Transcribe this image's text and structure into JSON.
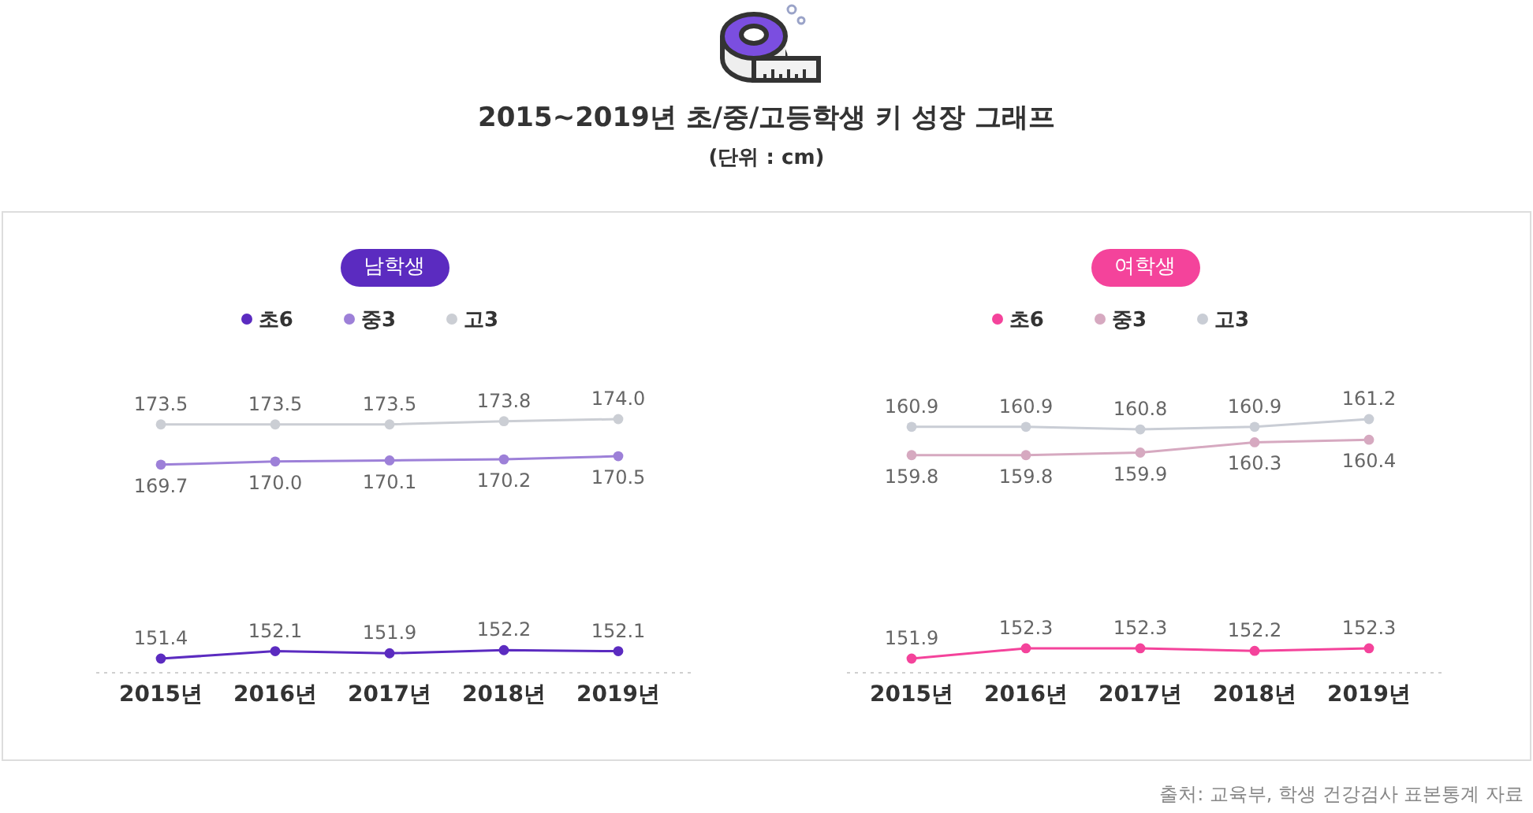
{
  "chart_data": [
    {
      "type": "other",
      "title": "2015~2019년 초/중/고등학생 키 성장 그래프",
      "subtitle": "(단위 : cm)"
    },
    {
      "type": "line",
      "legend_title": "남학생",
      "categories": [
        "2015년",
        "2016년",
        "2017년",
        "2018년",
        "2019년"
      ],
      "series": [
        {
          "name": "초6",
          "color": "#5b2bc0",
          "values": [
            151.4,
            152.1,
            151.9,
            152.2,
            152.1
          ],
          "value_labels": [
            "151.4",
            "152.1",
            "151.9",
            "152.2",
            "152.1"
          ]
        },
        {
          "name": "중3",
          "color": "#9d80d8",
          "values": [
            169.7,
            170.0,
            170.1,
            170.2,
            170.5
          ],
          "value_labels": [
            "169.7",
            "170.0",
            "170.1",
            "170.2",
            "170.5"
          ]
        },
        {
          "name": "고3",
          "color": "#cbced4",
          "values": [
            173.5,
            173.5,
            173.5,
            173.8,
            174.0
          ],
          "value_labels": [
            "173.5",
            "173.5",
            "173.5",
            "173.8",
            "174.0"
          ]
        }
      ],
      "legend": "top",
      "marker": "circle",
      "line_style": "solid"
    },
    {
      "type": "line",
      "legend_title": "여학생",
      "categories": [
        "2015년",
        "2016년",
        "2017년",
        "2018년",
        "2019년"
      ],
      "series": [
        {
          "name": "초6",
          "color": "#f4439b",
          "values": [
            151.9,
            152.3,
            152.3,
            152.2,
            152.3
          ],
          "value_labels": [
            "151.9",
            "152.3",
            "152.3",
            "152.2",
            "152.3"
          ]
        },
        {
          "name": "중3",
          "color": "#d6a9c0",
          "values": [
            159.8,
            159.8,
            159.9,
            160.3,
            160.4
          ],
          "value_labels": [
            "159.8",
            "159.8",
            "159.9",
            "160.3",
            "160.4"
          ]
        },
        {
          "name": "고3",
          "color": "#c9cdd5",
          "values": [
            160.9,
            160.9,
            160.8,
            160.9,
            161.2
          ],
          "value_labels": [
            "160.9",
            "160.9",
            "160.8",
            "160.9",
            "161.2"
          ]
        }
      ],
      "legend": "top",
      "marker": "circle",
      "line_style": "solid",
      "annotations": [
        "출처: 교육부, 학생 건강검사 표본통계 자료"
      ]
    }
  ]
}
